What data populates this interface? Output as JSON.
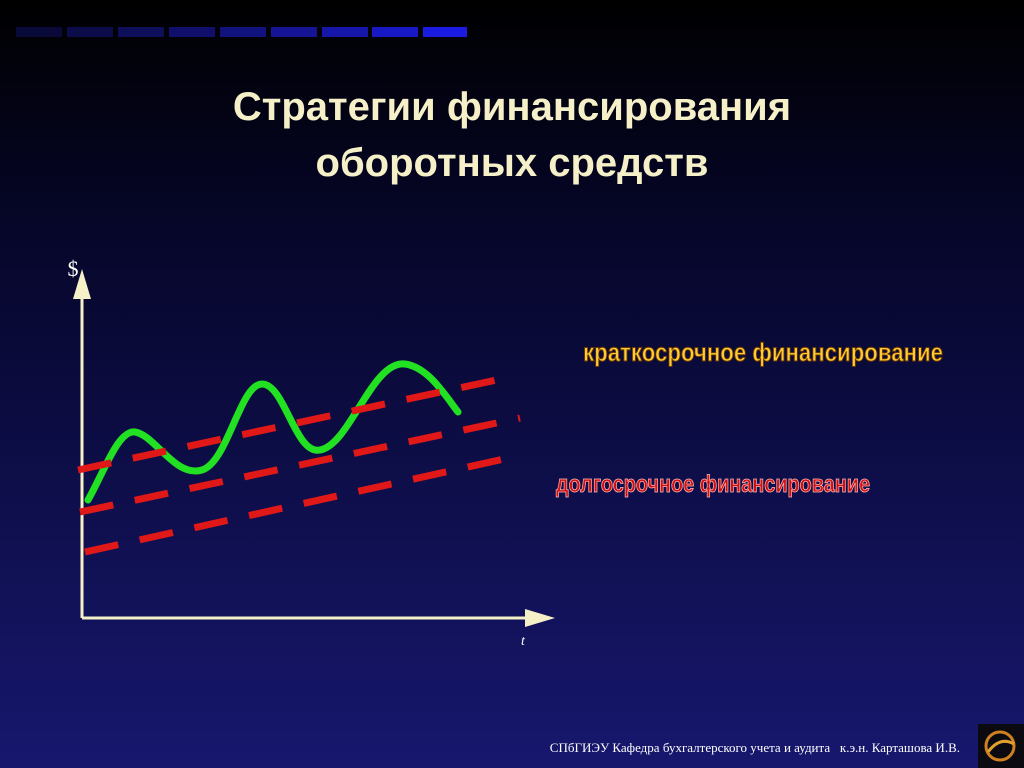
{
  "title": {
    "lines": [
      "Стратегии финансирования",
      "оборотных средств"
    ]
  },
  "diagram": {
    "y_axis_label": "$",
    "x_axis_label": "t",
    "labels": {
      "short_term": "краткосрочное финансирование",
      "long_term": "долгосрочное финансирование"
    }
  },
  "footer": {
    "text": "СПбГИЭУ Кафедра бухгалтерского учета и аудита   к.э.н. Карташова И.В."
  }
}
